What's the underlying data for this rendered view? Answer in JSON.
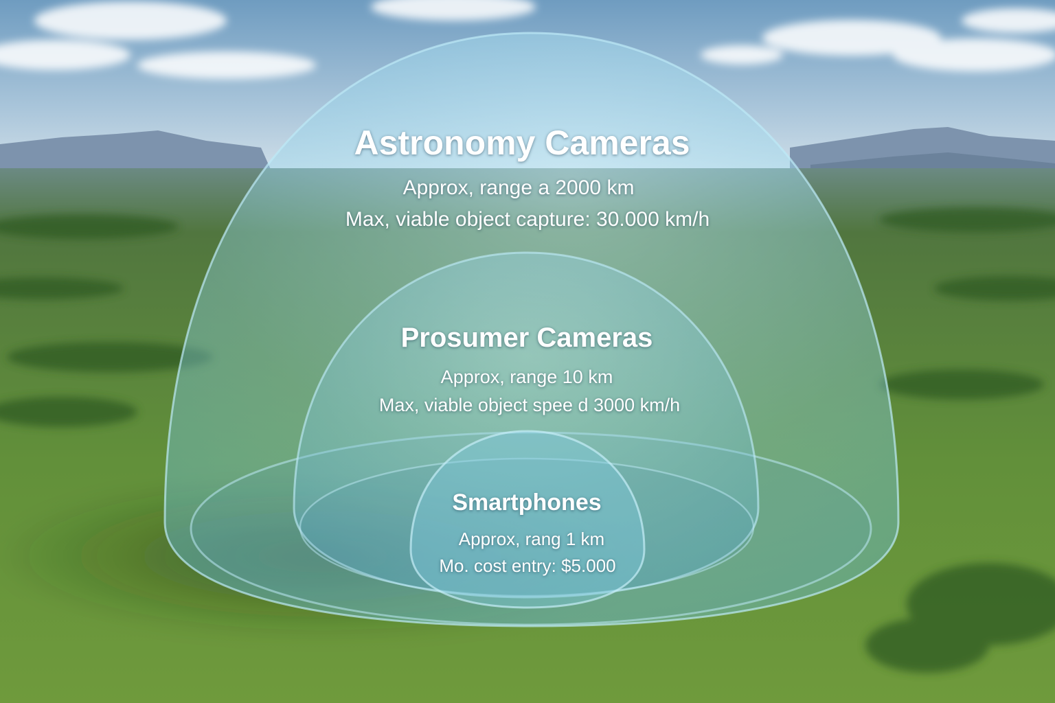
{
  "domes": {
    "outer": {
      "title": "Astronomy Cameras",
      "line1": "Approx, range a 2000 km",
      "line2": "Max, viable object capture: 30.000 km/h"
    },
    "middle": {
      "title": "Prosumer Cameras",
      "line1": "Approx, range 10 km",
      "line2": "Max, viable object spee d 3000 km/h"
    },
    "inner": {
      "title": "Smartphones",
      "line1": "Approx, rang 1 km",
      "line2": "Mo. cost entry: $5.000"
    }
  },
  "colors": {
    "dome_fill": "#8fd3ea",
    "dome_edge": "#bdeaf6",
    "sky_top": "#6f9cc0",
    "grass": "#5f8a36",
    "forest": "#2f5a24",
    "mountains": "#7d93ad"
  }
}
